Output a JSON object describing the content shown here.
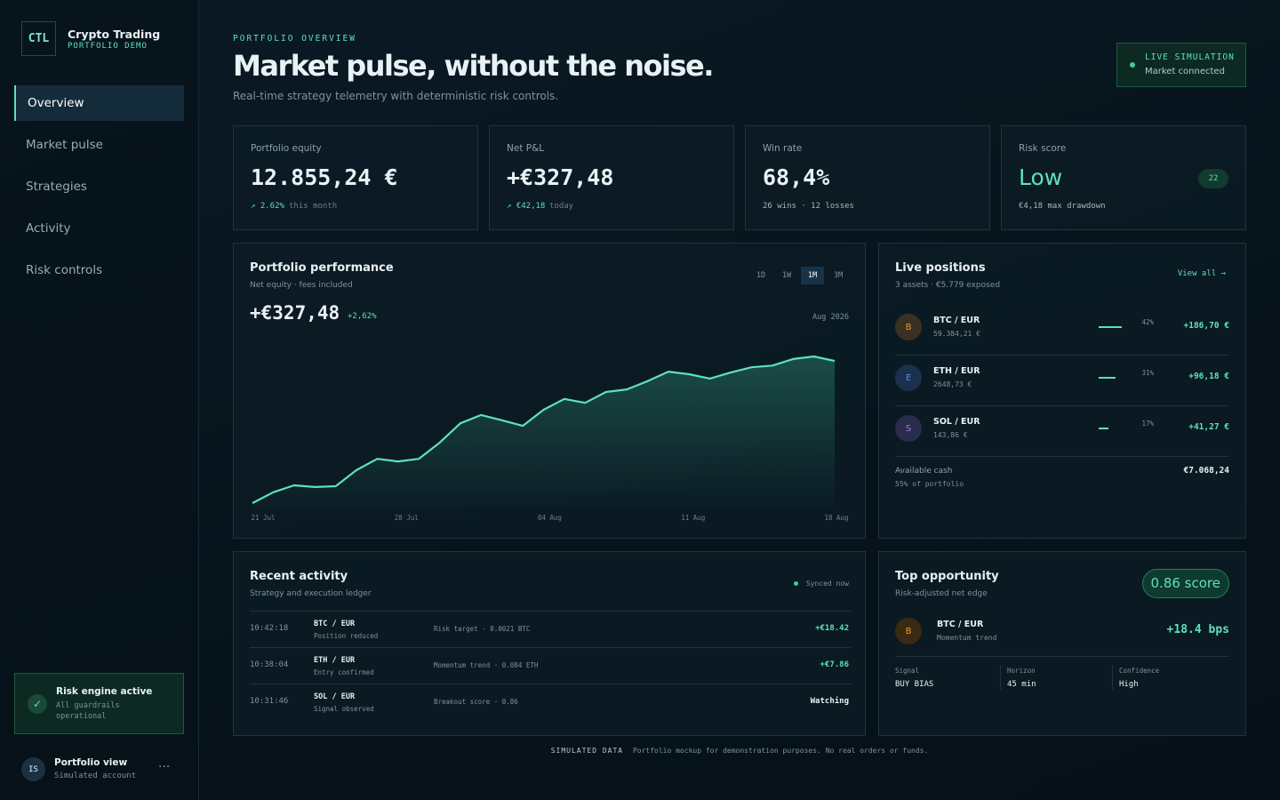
{
  "sidebar": {
    "logo": "CTL",
    "brand": "Crypto Trading",
    "brand_sub": "PORTFOLIO DEMO",
    "nav": [
      "Overview",
      "Market pulse",
      "Strategies",
      "Activity",
      "Risk controls"
    ],
    "active_nav": 0,
    "status": {
      "title": "Risk engine active",
      "text": "All guardrails operational"
    },
    "user": {
      "initials": "IS",
      "name": "Portfolio view",
      "sub": "Simulated account"
    }
  },
  "header": {
    "eyebrow": "PORTFOLIO OVERVIEW",
    "title": "Market pulse, without the noise.",
    "subtitle": "Real-time strategy telemetry with deterministic risk controls.",
    "badge": {
      "title": "LIVE SIMULATION",
      "text": "Market connected"
    }
  },
  "kpis": [
    {
      "label": "Portfolio equity",
      "value": "12.855,24 €",
      "delta": "↗ 2.62%",
      "note": "this month"
    },
    {
      "label": "Net P&L",
      "value": "+€327,48",
      "delta": "↗ €42,18",
      "note": "today"
    },
    {
      "label": "Win rate",
      "value": "68,4%",
      "note": "26 wins · 12 losses"
    },
    {
      "label": "Risk score",
      "value": "Low",
      "badge": "22",
      "note": "€4,18 max drawdown"
    }
  ],
  "performance": {
    "title": "Portfolio performance",
    "subtitle": "Net equity · fees included",
    "ranges": [
      "1D",
      "1W",
      "1M",
      "3M"
    ],
    "active_range": 2,
    "value": "+€327,48",
    "change": "+2,62%",
    "period": "Aug 2026",
    "chart_data": {
      "type": "line",
      "color": "#5ee0c0",
      "values": [
        0,
        25,
        41,
        37,
        39,
        76,
        102,
        96,
        102,
        139,
        184,
        203,
        191,
        178,
        215,
        240,
        231,
        256,
        262,
        281,
        303,
        297,
        287,
        301,
        313,
        317,
        332,
        338,
        327.48
      ],
      "xticks": [
        {
          "value": 0,
          "label": "21 Jul"
        },
        {
          "value": 7,
          "label": "28 Jul"
        },
        {
          "value": 14,
          "label": "04 Aug"
        },
        {
          "value": 21,
          "label": "11 Aug"
        },
        {
          "value": 28,
          "label": "18 Aug"
        }
      ]
    }
  },
  "positions": {
    "title": "Live positions",
    "subtitle": "3 assets · €5.779 exposed",
    "link": "View all →",
    "items": [
      {
        "icon": "B",
        "color": "#f7931a",
        "pair": "BTC / EUR",
        "amount": "59.384,21 €",
        "share": 42,
        "share_label": "42%",
        "pnl": "+186,70 €"
      },
      {
        "icon": "E",
        "color": "#5b8def",
        "pair": "ETH / EUR",
        "amount": "2648,73 €",
        "share": 31,
        "share_label": "31%",
        "pnl": "+96,18 €"
      },
      {
        "icon": "S",
        "color": "#a07cf0",
        "pair": "SOL / EUR",
        "amount": "143,86 €",
        "share": 17,
        "share_label": "17%",
        "pnl": "+41,27 €"
      }
    ],
    "cash": {
      "label": "Available cash",
      "note": "55% of portfolio",
      "value": "€7.068,24"
    }
  },
  "activity": {
    "title": "Recent activity",
    "subtitle": "Strategy and execution ledger",
    "sync": "Synced now",
    "rows": [
      {
        "time": "10:42:18",
        "pair": "BTC / EUR",
        "status": "Position reduced",
        "detail": "Risk target · 0.0021 BTC",
        "result": "+€18.42"
      },
      {
        "time": "10:38:04",
        "pair": "ETH / EUR",
        "status": "Entry confirmed",
        "detail": "Momentum trend · 0.084 ETH",
        "result": "+€7.86"
      },
      {
        "time": "10:31:46",
        "pair": "SOL / EUR",
        "status": "Signal observed",
        "detail": "Breakout score · 0.86",
        "result": "Watching"
      }
    ]
  },
  "opportunity": {
    "title": "Top opportunity",
    "subtitle": "Risk-adjusted net edge",
    "score": "0.86 score",
    "icon": "B",
    "pair": "BTC / EUR",
    "strategy": "Momentum trend",
    "edge": "+18.4 bps",
    "stats": [
      {
        "label": "Signal",
        "value": "BUY BIAS"
      },
      {
        "label": "Horizon",
        "value": "45 min"
      },
      {
        "label": "Confidence",
        "value": "High"
      }
    ]
  },
  "footer": {
    "tag": "SIMULATED DATA",
    "text": "Portfolio mockup for demonstration purposes. No real orders or funds."
  }
}
